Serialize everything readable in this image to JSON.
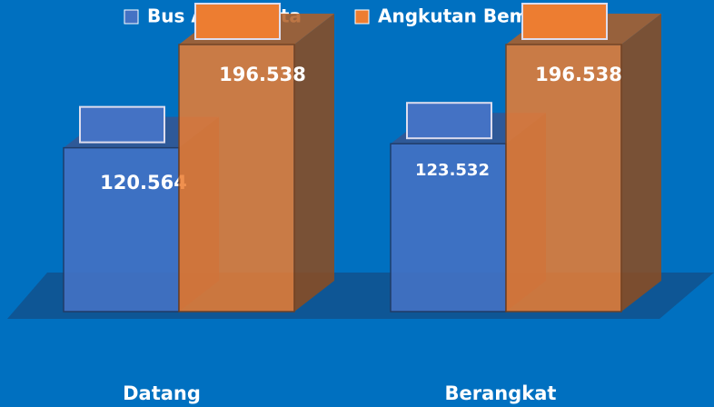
{
  "chart_data": {
    "type": "bar3d",
    "categories": [
      "Datang",
      "Berangkat"
    ],
    "series": [
      {
        "name": "Bus Antar Kota",
        "color": "#4472c4",
        "values": [
          120564,
          123532
        ],
        "value_labels": [
          "120.564",
          "123.532"
        ]
      },
      {
        "name": "Angkutan Bemo",
        "color": "#ed7d31",
        "values": [
          196538,
          196538
        ],
        "value_labels": [
          "196.538",
          "196.538"
        ]
      }
    ]
  }
}
